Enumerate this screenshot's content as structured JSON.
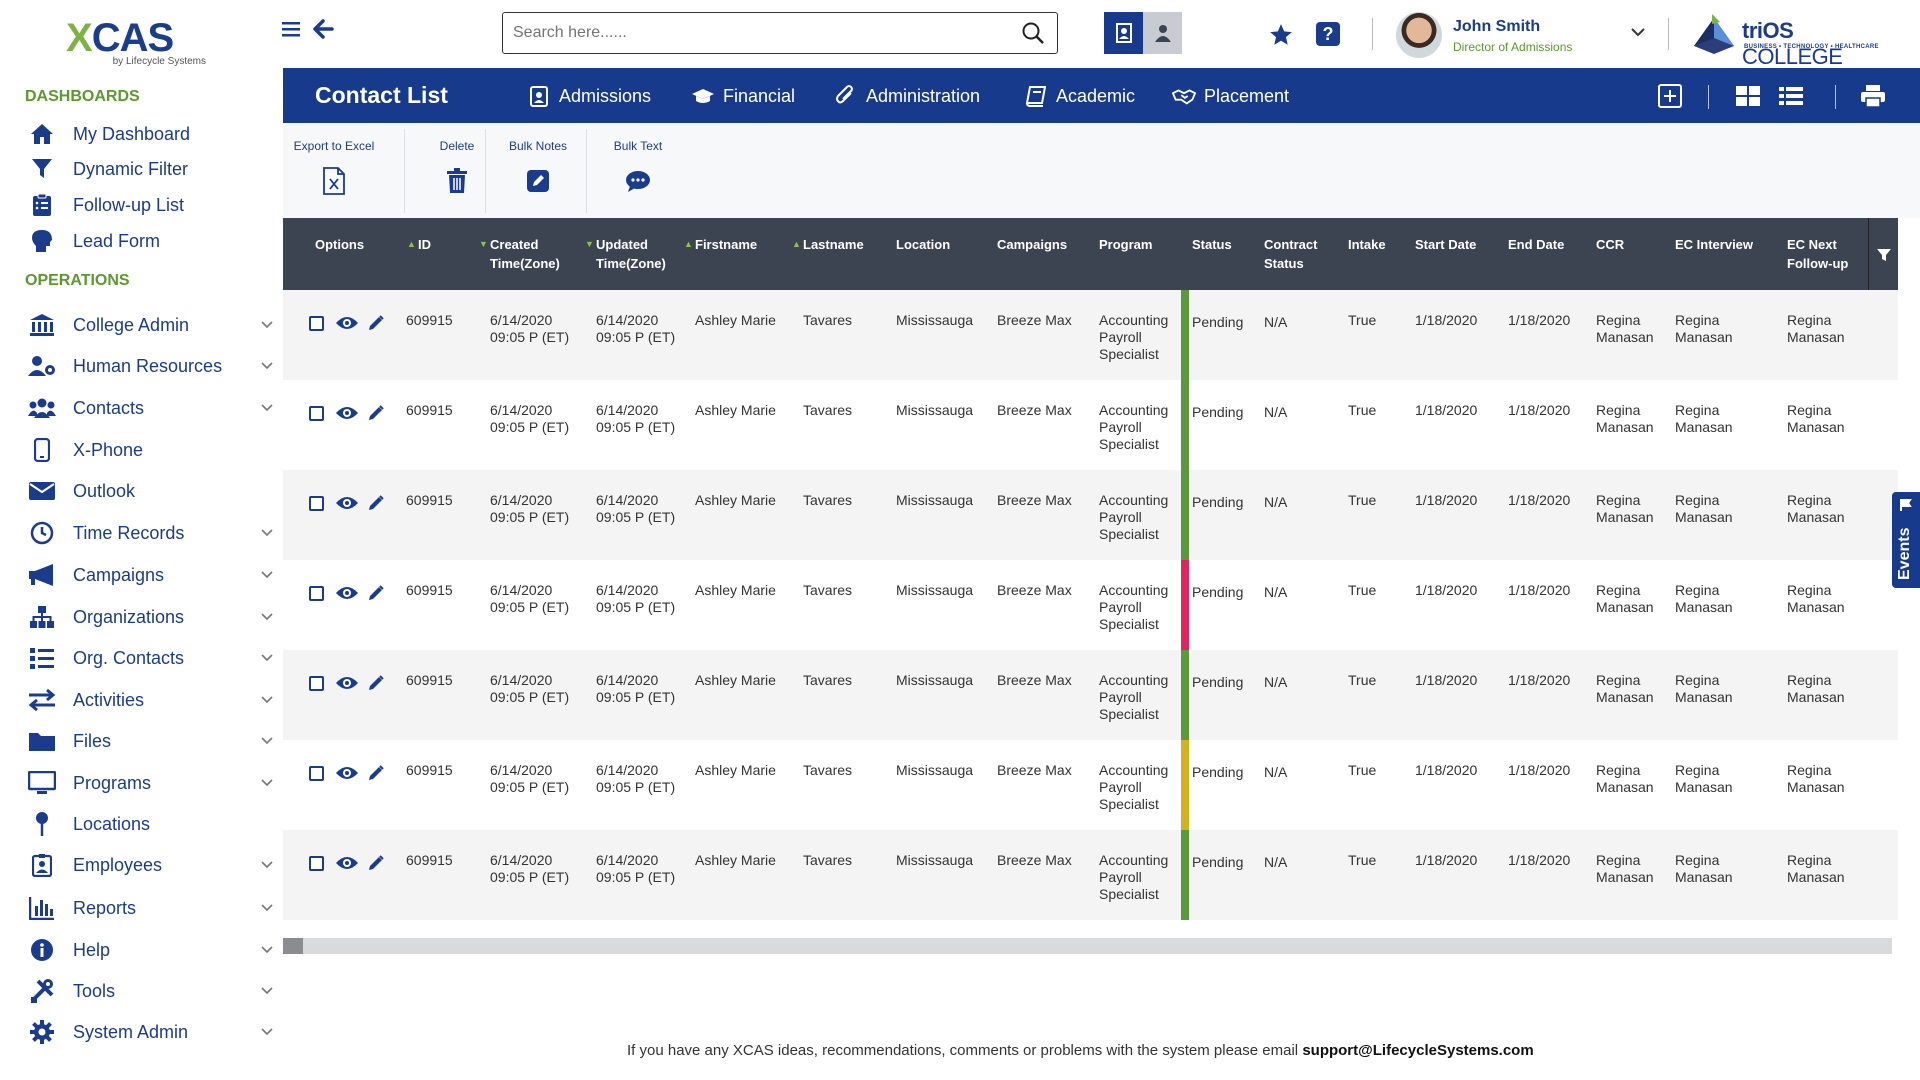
{
  "brand": {
    "logo": "XCAS",
    "logo_sub": "by Lifecycle Systems"
  },
  "sidebar": {
    "dashboards_title": "DASHBOARDS",
    "dashboards": [
      {
        "label": "My Dashboard",
        "icon": "home-icon"
      },
      {
        "label": "Dynamic Filter",
        "icon": "funnel-icon"
      },
      {
        "label": "Follow-up List",
        "icon": "clipboard-list-icon"
      },
      {
        "label": "Lead Form",
        "icon": "head-icon"
      }
    ],
    "operations_title": "OPERATIONS",
    "operations": [
      {
        "label": "College Admin",
        "icon": "institution-icon",
        "expandable": true
      },
      {
        "label": "Human Resources",
        "icon": "user-gear-icon",
        "expandable": true
      },
      {
        "label": "Contacts",
        "icon": "users-icon",
        "expandable": true
      },
      {
        "label": "X-Phone",
        "icon": "phone-icon",
        "expandable": false
      },
      {
        "label": "Outlook",
        "icon": "envelope-icon",
        "expandable": false
      },
      {
        "label": "Time Records",
        "icon": "clock-icon",
        "expandable": true
      },
      {
        "label": "Campaigns",
        "icon": "megaphone-icon",
        "expandable": true
      },
      {
        "label": "Organizations",
        "icon": "org-chart-icon",
        "expandable": true
      },
      {
        "label": "Org. Contacts",
        "icon": "list-icon",
        "expandable": true
      },
      {
        "label": "Activities",
        "icon": "exchange-icon",
        "expandable": true
      },
      {
        "label": "Files",
        "icon": "folder-icon",
        "expandable": true
      },
      {
        "label": "Programs",
        "icon": "monitor-icon",
        "expandable": true
      },
      {
        "label": "Locations",
        "icon": "map-pin-icon",
        "expandable": false
      },
      {
        "label": "Employees",
        "icon": "id-badge-icon",
        "expandable": true
      },
      {
        "label": "Reports",
        "icon": "bar-chart-icon",
        "expandable": true
      },
      {
        "label": "Help",
        "icon": "info-icon",
        "expandable": true
      },
      {
        "label": "Tools",
        "icon": "tools-icon",
        "expandable": true
      },
      {
        "label": "System Admin",
        "icon": "gear-icon",
        "expandable": true
      }
    ]
  },
  "topbar": {
    "search_placeholder": "Search here......",
    "user_name": "John Smith",
    "user_role": "Director of Admissions",
    "college_brand_bold": "triOS",
    "college_brand": " COLLEGE",
    "college_tagline": "BUSINESS • TECHNOLOGY • HEALTHCARE"
  },
  "header": {
    "title": "Contact List",
    "tabs": [
      {
        "label": "Admissions",
        "icon": "id-badge-icon"
      },
      {
        "label": "Financial",
        "icon": "graduation-cap-icon"
      },
      {
        "label": "Administration",
        "icon": "paperclip-icon"
      },
      {
        "label": "Academic",
        "icon": "book-icon"
      },
      {
        "label": "Placement",
        "icon": "handshake-icon"
      }
    ]
  },
  "toolbar": {
    "export": "Export to Excel",
    "delete": "Delete",
    "bulk_notes": "Bulk Notes",
    "bulk_text": "Bulk Text"
  },
  "table": {
    "columns": {
      "options": "Options",
      "id": "ID",
      "created": "Created Time(Zone)",
      "updated": "Updated Time(Zone)",
      "firstname": "Firstname",
      "lastname": "Lastname",
      "location": "Location",
      "campaigns": "Campaigns",
      "program": "Program",
      "status": "Status",
      "contract": "Contract Status",
      "intake": "Intake",
      "start": "Start Date",
      "end": "End Date",
      "ccr": "CCR",
      "ec_interview": "EC Interview",
      "ec_next": "EC Next Follow-up"
    },
    "status_colors": {
      "green": "#5b9a3c",
      "red": "#e0245e",
      "yellow": "#d4b21f"
    },
    "rows": [
      {
        "id": "609915",
        "created_date": "6/14/2020",
        "created_time": "09:05 P (ET)",
        "updated_date": "6/14/2020",
        "updated_time": "09:05 P (ET)",
        "firstname": "Ashley Marie",
        "lastname": "Tavares",
        "location": "Mississauga",
        "campaign": "Breeze Max",
        "program": "Accounting Payroll Specialist",
        "status": "Pending",
        "status_color": "green",
        "contract": "N/A",
        "intake": "True",
        "start": "1/18/2020",
        "end": "1/18/2020",
        "ccr": "Regina Manasan",
        "ec_interview": "Regina Manasan",
        "ec_next": "Regina Manasan"
      },
      {
        "id": "609915",
        "created_date": "6/14/2020",
        "created_time": "09:05 P (ET)",
        "updated_date": "6/14/2020",
        "updated_time": "09:05 P (ET)",
        "firstname": "Ashley Marie",
        "lastname": "Tavares",
        "location": "Mississauga",
        "campaign": "Breeze Max",
        "program": "Accounting Payroll Specialist",
        "status": "Pending",
        "status_color": "green",
        "contract": "N/A",
        "intake": "True",
        "start": "1/18/2020",
        "end": "1/18/2020",
        "ccr": "Regina Manasan",
        "ec_interview": "Regina Manasan",
        "ec_next": "Regina Manasan"
      },
      {
        "id": "609915",
        "created_date": "6/14/2020",
        "created_time": "09:05 P (ET)",
        "updated_date": "6/14/2020",
        "updated_time": "09:05 P (ET)",
        "firstname": "Ashley Marie",
        "lastname": "Tavares",
        "location": "Mississauga",
        "campaign": "Breeze Max",
        "program": "Accounting Payroll Specialist",
        "status": "Pending",
        "status_color": "green",
        "contract": "N/A",
        "intake": "True",
        "start": "1/18/2020",
        "end": "1/18/2020",
        "ccr": "Regina Manasan",
        "ec_interview": "Regina Manasan",
        "ec_next": "Regina Manasan"
      },
      {
        "id": "609915",
        "created_date": "6/14/2020",
        "created_time": "09:05 P (ET)",
        "updated_date": "6/14/2020",
        "updated_time": "09:05 P (ET)",
        "firstname": "Ashley Marie",
        "lastname": "Tavares",
        "location": "Mississauga",
        "campaign": "Breeze Max",
        "program": "Accounting Payroll Specialist",
        "status": "Pending",
        "status_color": "red",
        "contract": "N/A",
        "intake": "True",
        "start": "1/18/2020",
        "end": "1/18/2020",
        "ccr": "Regina Manasan",
        "ec_interview": "Regina Manasan",
        "ec_next": "Regina Manasan"
      },
      {
        "id": "609915",
        "created_date": "6/14/2020",
        "created_time": "09:05 P (ET)",
        "updated_date": "6/14/2020",
        "updated_time": "09:05 P (ET)",
        "firstname": "Ashley Marie",
        "lastname": "Tavares",
        "location": "Mississauga",
        "campaign": "Breeze Max",
        "program": "Accounting Payroll Specialist",
        "status": "Pending",
        "status_color": "green",
        "contract": "N/A",
        "intake": "True",
        "start": "1/18/2020",
        "end": "1/18/2020",
        "ccr": "Regina Manasan",
        "ec_interview": "Regina Manasan",
        "ec_next": "Regina Manasan"
      },
      {
        "id": "609915",
        "created_date": "6/14/2020",
        "created_time": "09:05 P (ET)",
        "updated_date": "6/14/2020",
        "updated_time": "09:05 P (ET)",
        "firstname": "Ashley Marie",
        "lastname": "Tavares",
        "location": "Mississauga",
        "campaign": "Breeze Max",
        "program": "Accounting Payroll Specialist",
        "status": "Pending",
        "status_color": "yellow",
        "contract": "N/A",
        "intake": "True",
        "start": "1/18/2020",
        "end": "1/18/2020",
        "ccr": "Regina Manasan",
        "ec_interview": "Regina Manasan",
        "ec_next": "Regina Manasan"
      },
      {
        "id": "609915",
        "created_date": "6/14/2020",
        "created_time": "09:05 P (ET)",
        "updated_date": "6/14/2020",
        "updated_time": "09:05 P (ET)",
        "firstname": "Ashley Marie",
        "lastname": "Tavares",
        "location": "Mississauga",
        "campaign": "Breeze Max",
        "program": "Accounting Payroll Specialist",
        "status": "Pending",
        "status_color": "green",
        "contract": "N/A",
        "intake": "True",
        "start": "1/18/2020",
        "end": "1/18/2020",
        "ccr": "Regina Manasan",
        "ec_interview": "Regina Manasan",
        "ec_next": "Regina Manasan"
      }
    ]
  },
  "events_tab": "Events",
  "footer": {
    "text": "If you have any XCAS ideas, recommendations, comments or problems with the system please email ",
    "email": "support@LifecycleSystems.com"
  }
}
